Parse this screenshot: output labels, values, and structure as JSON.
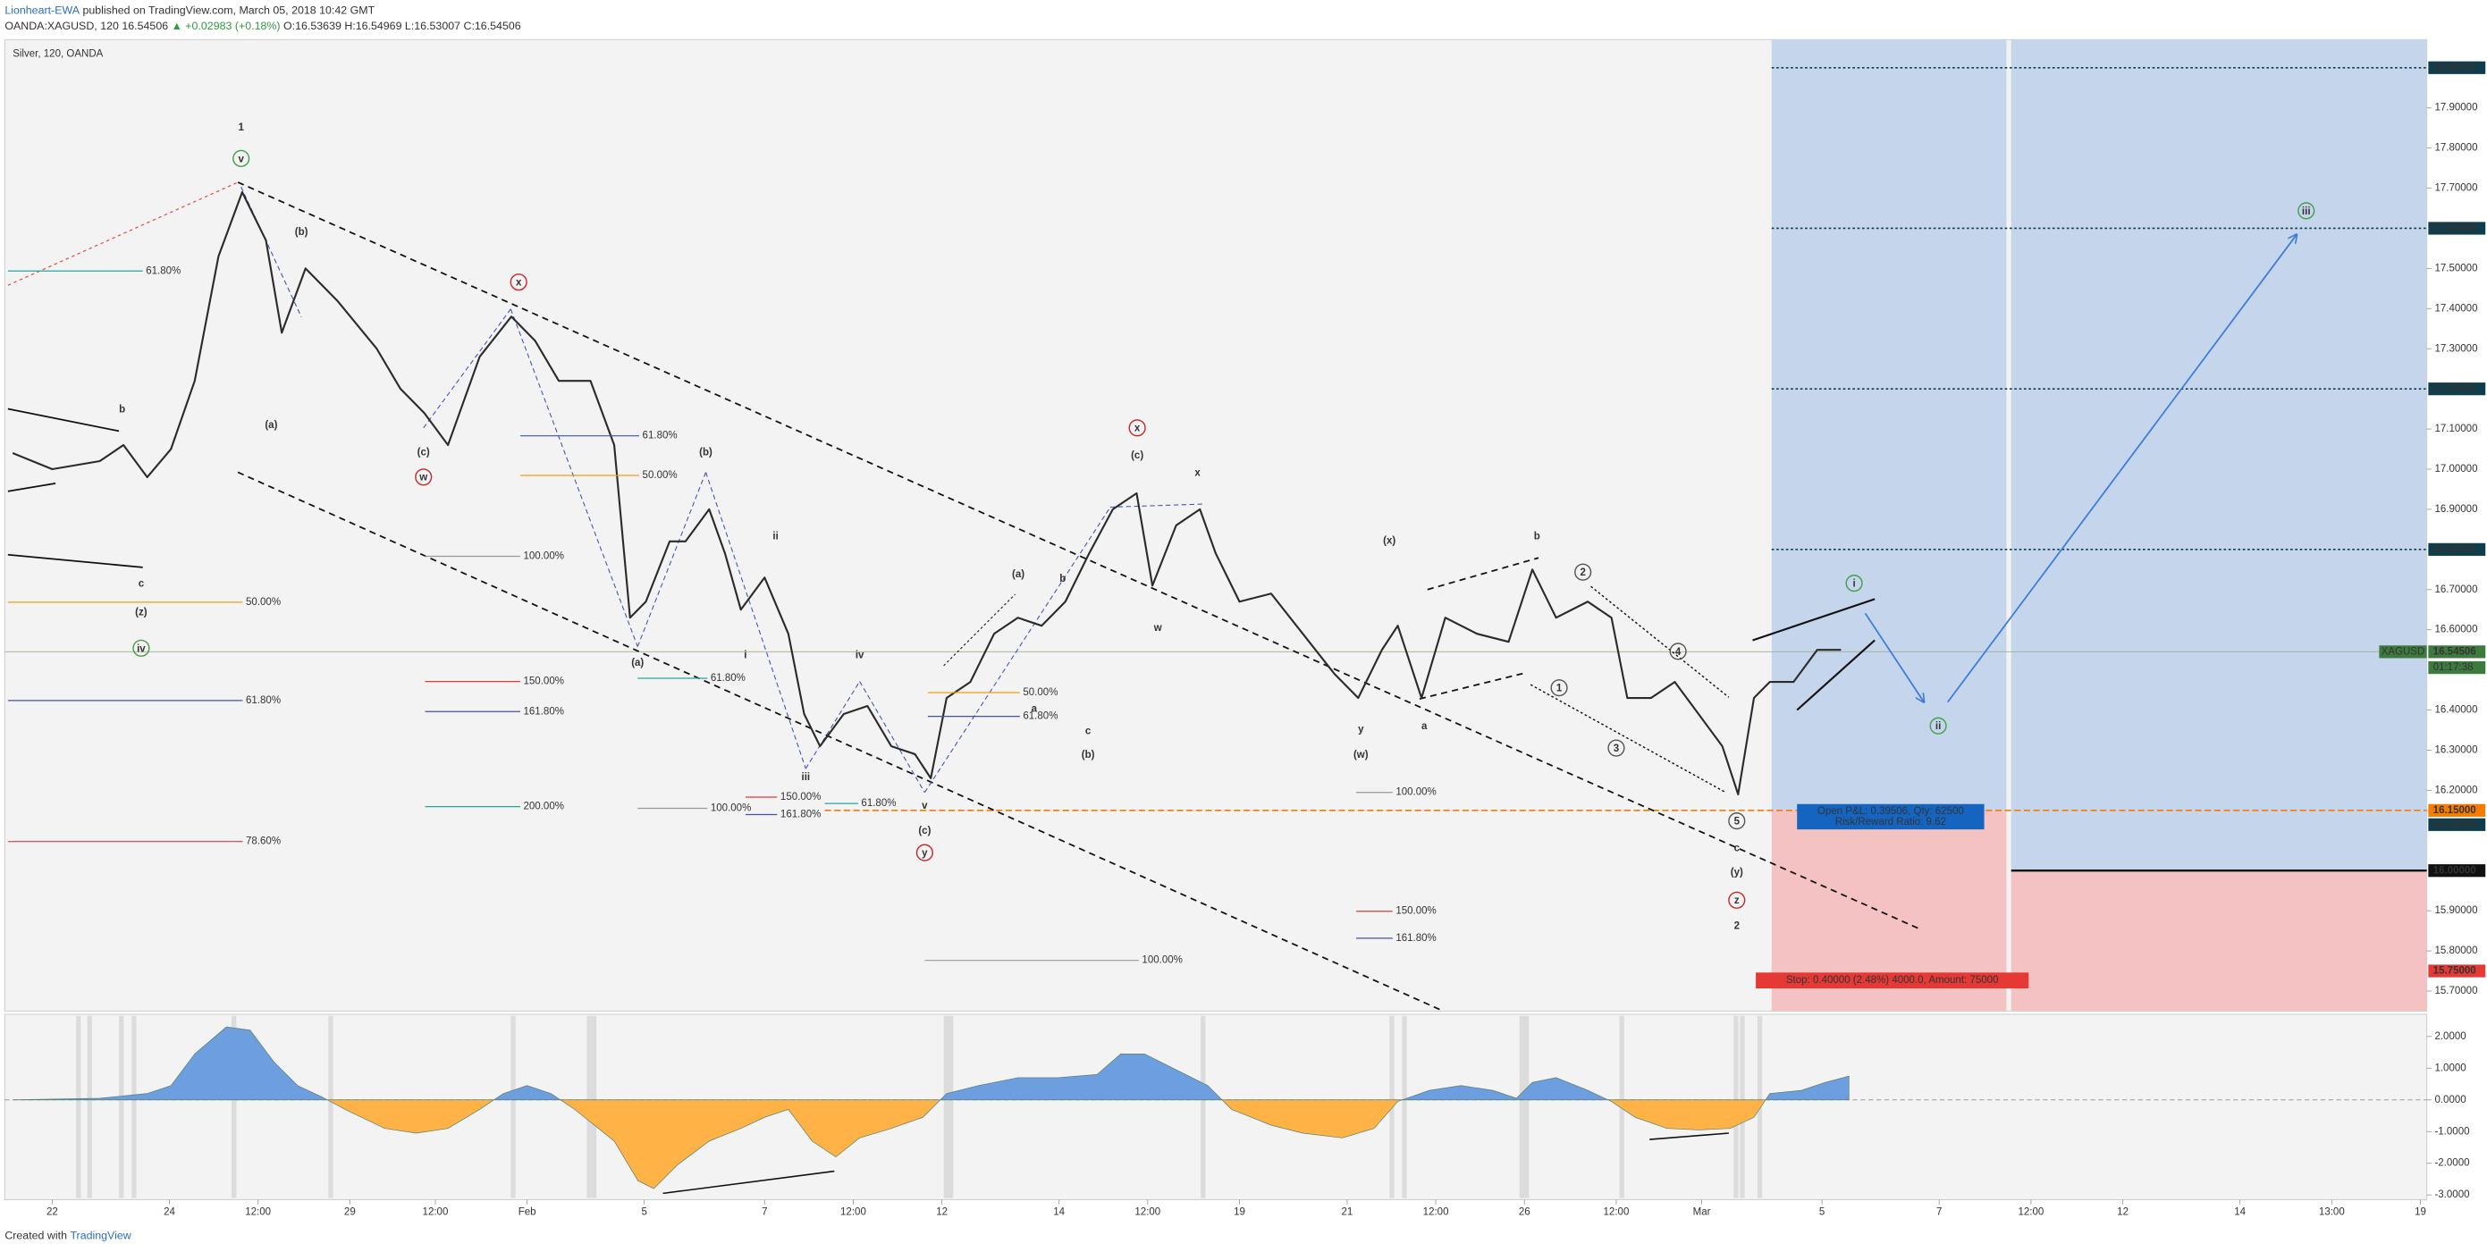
{
  "header": {
    "author": "Lionheart-EWA",
    "published": "published on TradingView.com, March 05, 2018 10:42 GMT",
    "symbol": "OANDA:XAGUSD, 120",
    "last": "16.54506",
    "change": "▲ +0.02983 (+0.18%)",
    "ohlc": "O:16.53639 H:16.54969 L:16.53007 C:16.54506"
  },
  "footer": {
    "created": "Created with",
    "brand": "TradingView"
  },
  "chart_data": [
    {
      "type": "line",
      "title": "Silver, 120, OANDA",
      "color": "#2b2b2b",
      "xlim": [
        0,
        765
      ],
      "ylim": [
        15.65,
        18.07
      ],
      "x": [
        2.5,
        15,
        30,
        37.5,
        45,
        52.5,
        60,
        67.5,
        75,
        82.5,
        87.5,
        95,
        105,
        117.5,
        125,
        132.5,
        140,
        150,
        160,
        167.5,
        175,
        185,
        192.5,
        197.5,
        202.5,
        210,
        215,
        222.5,
        227.5,
        232.5,
        240,
        247.5,
        252.5,
        257.5,
        265,
        272.5,
        280,
        287.5,
        292.5,
        297.5,
        305,
        312.5,
        320,
        327.5,
        335,
        342.5,
        350,
        357.5,
        362.5,
        370,
        377.5,
        382.5,
        390,
        400,
        410,
        420,
        427.5,
        435,
        440,
        447.5,
        455,
        465,
        475,
        482.5,
        490,
        500,
        507.5,
        512.5,
        520,
        527.5,
        535,
        542.5,
        547.5,
        552.5,
        557.5,
        565,
        572.5,
        580
      ],
      "values": [
        17.04,
        17.0,
        17.02,
        17.06,
        16.98,
        17.05,
        17.22,
        17.53,
        17.69,
        17.57,
        17.34,
        17.5,
        17.42,
        17.3,
        17.2,
        17.14,
        17.06,
        17.28,
        17.38,
        17.32,
        17.22,
        17.22,
        17.06,
        16.63,
        16.67,
        16.82,
        16.82,
        16.9,
        16.79,
        16.65,
        16.73,
        16.59,
        16.39,
        16.31,
        16.39,
        16.41,
        16.31,
        16.29,
        16.23,
        16.43,
        16.47,
        16.59,
        16.63,
        16.61,
        16.67,
        16.79,
        16.9,
        16.94,
        16.71,
        16.86,
        16.9,
        16.79,
        16.67,
        16.69,
        16.59,
        16.49,
        16.43,
        16.55,
        16.61,
        16.43,
        16.63,
        16.59,
        16.57,
        16.75,
        16.63,
        16.67,
        16.63,
        16.43,
        16.43,
        16.47,
        16.39,
        16.31,
        16.19,
        16.43,
        16.47,
        16.47,
        16.55,
        16.55
      ],
      "yticks": [
        {
          "value": 15.7,
          "label": "15.70000"
        },
        {
          "value": 15.8,
          "label": "15.80000"
        },
        {
          "value": 15.9,
          "label": "15.90000"
        },
        {
          "value": 16.2,
          "label": "16.20000"
        },
        {
          "value": 16.3,
          "label": "16.30000"
        },
        {
          "value": 16.4,
          "label": "16.40000"
        },
        {
          "value": 16.6,
          "label": "16.60000"
        },
        {
          "value": 16.7,
          "label": "16.70000"
        },
        {
          "value": 16.9,
          "label": "16.90000"
        },
        {
          "value": 17.0,
          "label": "17.00000"
        },
        {
          "value": 17.1,
          "label": "17.10000"
        },
        {
          "value": 17.3,
          "label": "17.30000"
        },
        {
          "value": 17.4,
          "label": "17.40000"
        },
        {
          "value": 17.5,
          "label": "17.50000"
        },
        {
          "value": 17.7,
          "label": "17.70000"
        },
        {
          "value": 17.8,
          "label": "17.80000"
        },
        {
          "value": 17.9,
          "label": "17.90000"
        }
      ],
      "price_tags": [
        {
          "value": 18.0,
          "label": "18.00000",
          "color": "#0f3d4c"
        },
        {
          "value": 17.6,
          "label": "17.60000",
          "color": "#0f3d4c"
        },
        {
          "value": 17.2,
          "label": "17.20000",
          "color": "#0f3d4c"
        },
        {
          "value": 16.8,
          "label": "16.80000",
          "color": "#0f3d4c"
        },
        {
          "value": 16.54506,
          "label": "16.54506",
          "color": "#3d7a3d"
        },
        {
          "value": 16.15,
          "label": "16.15000",
          "color": "#f57c00"
        },
        {
          "value": 16.15,
          "label": "16.15000",
          "color": "#0f3d4c"
        },
        {
          "value": 16.0,
          "label": "16.00000",
          "color": "#111111"
        },
        {
          "value": 15.75,
          "label": "15.75000",
          "color": "#e53935"
        }
      ],
      "symbol_tag": "XAGUSD",
      "countdown": "01:17:38",
      "levels": [
        {
          "value": 18.0,
          "style": "dotted",
          "color": "#0f3d4c"
        },
        {
          "value": 17.6,
          "style": "dotted",
          "color": "#0f3d4c"
        },
        {
          "value": 17.2,
          "style": "dotted",
          "color": "#0f3d4c"
        },
        {
          "value": 16.8,
          "style": "dotted",
          "color": "#0f3d4c"
        },
        {
          "value": 16.15,
          "style": "dashed",
          "color": "#f57c00"
        },
        {
          "value": 16.0,
          "style": "solid",
          "color": "#111111"
        }
      ],
      "position": {
        "entry": 16.15,
        "stop": 15.75,
        "profit_color": "#c5d5ec",
        "loss_color": "#f4c2c2",
        "pnl_label": "Open P&L: 0.39506, Qty: 62500",
        "rr_label": "Risk/Reward Ratio: 9.62",
        "stop_label": "Stop: 0.40000 (2.48%) 4000.0, Amount: 75000"
      },
      "annotations": [
        {
          "text": "1",
          "color": "#8e24aa",
          "circled": false
        },
        {
          "text": "v",
          "color": "#43a047",
          "circled": true
        },
        {
          "text": "(b)",
          "color": "#111111",
          "circled": false
        },
        {
          "text": "(a)",
          "color": "#111111",
          "circled": false
        },
        {
          "text": "(c)",
          "color": "#111111",
          "circled": false
        },
        {
          "text": "w",
          "color": "#c62828",
          "circled": true
        },
        {
          "text": "x",
          "color": "#c62828",
          "circled": true
        },
        {
          "text": "b",
          "color": "#b5651d",
          "circled": false
        },
        {
          "text": "c",
          "color": "#b5651d",
          "circled": false
        },
        {
          "text": "(z)",
          "color": "#a52714",
          "circled": false
        },
        {
          "text": "iv",
          "color": "#43a047",
          "circled": true
        },
        {
          "text": "(a)",
          "color": "#111111",
          "circled": false
        },
        {
          "text": "(b)",
          "color": "#111111",
          "circled": false
        },
        {
          "text": "ii",
          "color": "#1a237e",
          "circled": false
        },
        {
          "text": "i",
          "color": "#1a237e",
          "circled": false
        },
        {
          "text": "iii",
          "color": "#1a237e",
          "circled": false
        },
        {
          "text": "iv",
          "color": "#1a237e",
          "circled": false
        },
        {
          "text": "v",
          "color": "#1a237e",
          "circled": false
        },
        {
          "text": "(c)",
          "color": "#111111",
          "circled": false
        },
        {
          "text": "y",
          "color": "#c62828",
          "circled": true
        },
        {
          "text": "(a)",
          "color": "#c17d11",
          "circled": false
        },
        {
          "text": "b",
          "color": "#1a237e",
          "circled": false
        },
        {
          "text": "a",
          "color": "#1a237e",
          "circled": false
        },
        {
          "text": "c",
          "color": "#1a237e",
          "circled": false
        },
        {
          "text": "(b)",
          "color": "#c17d11",
          "circled": false
        },
        {
          "text": "(c)",
          "color": "#c17d11",
          "circled": false
        },
        {
          "text": "x",
          "color": "#c62828",
          "circled": true
        },
        {
          "text": "x",
          "color": "#8e24aa",
          "circled": false
        },
        {
          "text": "w",
          "color": "#8e24aa",
          "circled": false
        },
        {
          "text": "(x)",
          "color": "#c17d11",
          "circled": false
        },
        {
          "text": "y",
          "color": "#8e24aa",
          "circled": false
        },
        {
          "text": "(w)",
          "color": "#c17d11",
          "circled": false
        },
        {
          "text": "a",
          "color": "#1a237e",
          "circled": false
        },
        {
          "text": "b",
          "color": "#1a237e",
          "circled": false
        },
        {
          "text": "2",
          "color": "#555555",
          "circled": true
        },
        {
          "text": "1",
          "color": "#555555",
          "circled": true
        },
        {
          "text": "3",
          "color": "#555555",
          "circled": true
        },
        {
          "text": "4",
          "color": "#555555",
          "circled": true
        },
        {
          "text": "5",
          "color": "#555555",
          "circled": true
        },
        {
          "text": "c",
          "color": "#1a237e",
          "circled": false
        },
        {
          "text": "(y)",
          "color": "#c17d11",
          "circled": false
        },
        {
          "text": "z",
          "color": "#c62828",
          "circled": true
        },
        {
          "text": "2",
          "color": "#8e24aa",
          "circled": false
        },
        {
          "text": "i",
          "color": "#43a047",
          "circled": true
        },
        {
          "text": "ii",
          "color": "#43a047",
          "circled": true
        },
        {
          "text": "iii",
          "color": "#43a047",
          "circled": true
        }
      ],
      "fib_labels": [
        {
          "text": "61.80%",
          "color": "#26a69a"
        },
        {
          "text": "61.80%",
          "color": "#3f51b5"
        },
        {
          "text": "50.00%",
          "color": "#f39c12"
        },
        {
          "text": "100.00%",
          "color": "#999999"
        },
        {
          "text": "50.00%",
          "color": "#f39c12"
        },
        {
          "text": "61.80%",
          "color": "#3f51b5"
        },
        {
          "text": "150.00%",
          "color": "#e53935"
        },
        {
          "text": "161.80%",
          "color": "#3f51b5"
        },
        {
          "text": "61.80%",
          "color": "#26a69a"
        },
        {
          "text": "200.00%",
          "color": "#26a69a"
        },
        {
          "text": "78.60%",
          "color": "#e53935"
        },
        {
          "text": "150.00%",
          "color": "#e53935"
        },
        {
          "text": "100.00%",
          "color": "#999999"
        },
        {
          "text": "161.80%",
          "color": "#3f51b5"
        },
        {
          "text": "61.80%",
          "color": "#26a69a"
        },
        {
          "text": "50.00%",
          "color": "#f39c12"
        },
        {
          "text": "61.80%",
          "color": "#3f51b5"
        },
        {
          "text": "100.00%",
          "color": "#999999"
        },
        {
          "text": "100.00%",
          "color": "#999999"
        },
        {
          "text": "150.00%",
          "color": "#e53935"
        },
        {
          "text": "161.80%",
          "color": "#3f51b5"
        }
      ]
    },
    {
      "type": "area",
      "colors": {
        "positive": "#6d9ee0",
        "negative": "#ffb347"
      },
      "xlim": [
        0,
        765
      ],
      "ylim": [
        -3.15,
        2.7
      ],
      "x": [
        2.5,
        30,
        45,
        52.5,
        60,
        70,
        77.5,
        85,
        92.5,
        100,
        107.5,
        120,
        130,
        140,
        150,
        157.5,
        165,
        172.5,
        180,
        192.5,
        200,
        205,
        212.5,
        222.5,
        232.5,
        240,
        247.5,
        255,
        262.5,
        270,
        280,
        290,
        297.5,
        307.5,
        320,
        332.5,
        345,
        352.5,
        360,
        370,
        380,
        387.5,
        400,
        410,
        422.5,
        432.5,
        440,
        450,
        460,
        470,
        477.5,
        482.5,
        490,
        500,
        507.5,
        515,
        525,
        535,
        545,
        552.5,
        557.5,
        567.5,
        575,
        582.5
      ],
      "values": [
        0,
        0.05,
        0.2,
        0.45,
        1.45,
        2.3,
        2.2,
        1.2,
        0.45,
        0.1,
        -0.3,
        -0.9,
        -1.05,
        -0.9,
        -0.3,
        0.2,
        0.45,
        0.2,
        -0.3,
        -1.3,
        -2.55,
        -2.8,
        -2.05,
        -1.3,
        -0.9,
        -0.55,
        -0.3,
        -1.3,
        -1.8,
        -1.2,
        -0.9,
        -0.55,
        0.2,
        0.45,
        0.7,
        0.7,
        0.8,
        1.45,
        1.45,
        0.95,
        0.45,
        -0.3,
        -0.8,
        -1.05,
        -1.2,
        -0.9,
        -0.05,
        0.3,
        0.45,
        0.3,
        0.05,
        0.55,
        0.7,
        0.3,
        -0.05,
        -0.55,
        -0.9,
        -0.95,
        -0.9,
        -0.55,
        0.2,
        0.3,
        0.55,
        0.75
      ],
      "yticks": [
        {
          "value": 2,
          "label": "2.0000"
        },
        {
          "value": 1,
          "label": "1.0000"
        },
        {
          "value": 0,
          "label": "0.0000"
        },
        {
          "value": -1,
          "label": "-1.0000"
        },
        {
          "value": -2,
          "label": "-2.0000"
        },
        {
          "value": -3,
          "label": "-3.0000"
        }
      ],
      "xticks": [
        {
          "value": 15,
          "label": "22"
        },
        {
          "value": 52,
          "label": "24"
        },
        {
          "value": 80,
          "label": "12:00"
        },
        {
          "value": 109,
          "label": "29"
        },
        {
          "value": 136,
          "label": "12:00"
        },
        {
          "value": 165,
          "label": "Feb"
        },
        {
          "value": 202,
          "label": "5"
        },
        {
          "value": 240,
          "label": "7"
        },
        {
          "value": 268,
          "label": "12:00"
        },
        {
          "value": 296,
          "label": "12"
        },
        {
          "value": 333,
          "label": "14"
        },
        {
          "value": 361,
          "label": "12:00"
        },
        {
          "value": 390,
          "label": "19"
        },
        {
          "value": 424,
          "label": "21"
        },
        {
          "value": 452,
          "label": "12:00"
        },
        {
          "value": 480,
          "label": "26"
        },
        {
          "value": 509,
          "label": "12:00"
        },
        {
          "value": 536,
          "label": "Mar"
        },
        {
          "value": 574,
          "label": "5"
        },
        {
          "value": 611,
          "label": "7"
        },
        {
          "value": 640,
          "label": "12:00"
        },
        {
          "value": 669,
          "label": "12"
        },
        {
          "value": 706,
          "label": "14"
        },
        {
          "value": 735,
          "label": "13:00"
        },
        {
          "value": 763,
          "label": "19"
        }
      ]
    }
  ]
}
